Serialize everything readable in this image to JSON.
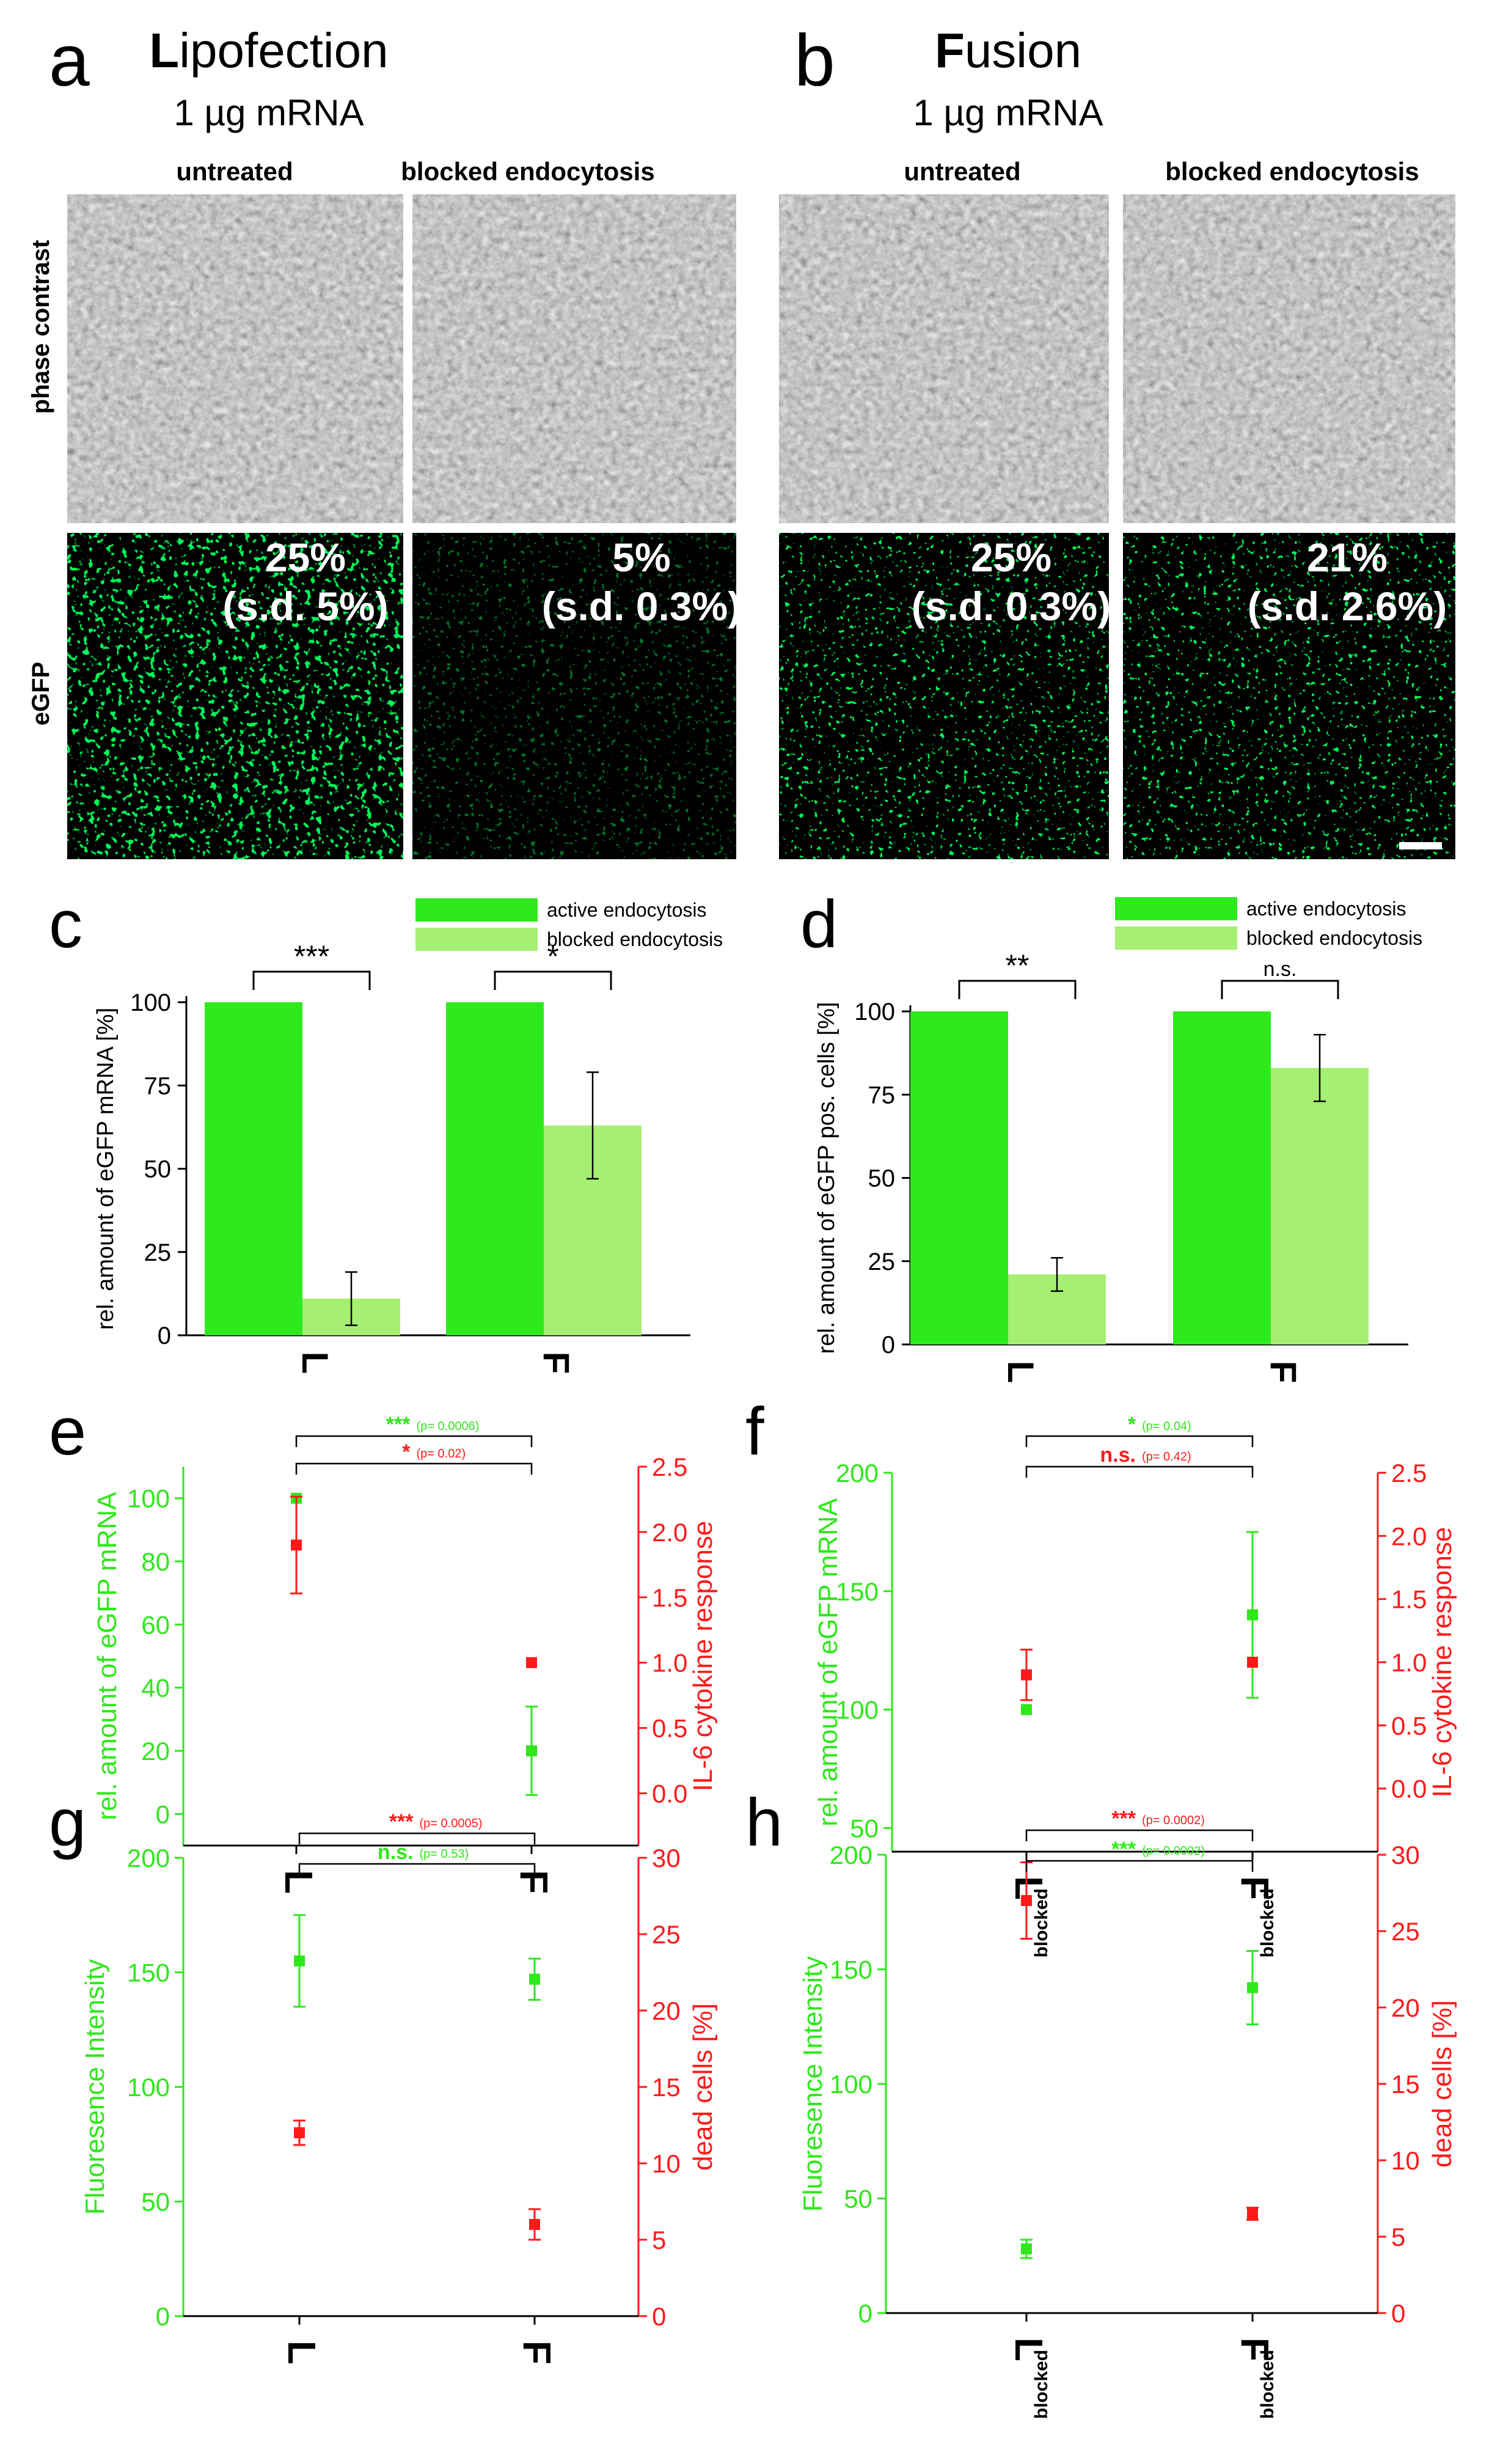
{
  "colors": {
    "active": "#2eea1c",
    "blocked": "#a5ef72",
    "green_axis": "#2ee81a",
    "red_axis": "#ff1a1a",
    "gfp_bg": "#000000",
    "gfp_cells": "#39ff3a",
    "phase_bg": "#a8a8a8"
  },
  "panel_a": {
    "letter": "a",
    "title_initial": "L",
    "title_rest": "ipofection",
    "subtitle": "1 µg mRNA",
    "col_untreated": "untreated",
    "col_blocked": "blocked endocytosis",
    "row_phase": "phase contrast",
    "row_egfp": "eGFP",
    "untreated_pct": "25%",
    "untreated_sd": "(s.d. 5%)",
    "blocked_pct": "5%",
    "blocked_sd": "(s.d. 0.3%)"
  },
  "panel_b": {
    "letter": "b",
    "title_initial": "F",
    "title_rest": "usion",
    "subtitle": "1 µg mRNA",
    "col_untreated": "untreated",
    "col_blocked": "blocked endocytosis",
    "untreated_pct": "25%",
    "untreated_sd": "(s.d. 0.3%)",
    "blocked_pct": "21%",
    "blocked_sd": "(s.d. 2.6%)"
  },
  "chart_data": [
    {
      "panel": "c",
      "type": "bar",
      "ylabel": "rel. amount of eGFP mRNA [%]",
      "categories": [
        "L",
        "F"
      ],
      "ylim": [
        0,
        100
      ],
      "yticks": [
        0,
        25,
        50,
        75,
        100
      ],
      "series": [
        {
          "name": "active endocytosis",
          "values": [
            100,
            100
          ],
          "errors": [
            0,
            0
          ]
        },
        {
          "name": "blocked endocytosis",
          "values": [
            11,
            63
          ],
          "errors": [
            8,
            16
          ]
        }
      ],
      "significance": [
        "***",
        "*"
      ],
      "legend_position": "top"
    },
    {
      "panel": "d",
      "type": "bar",
      "ylabel": "rel. amount of eGFP pos. cells [%]",
      "categories": [
        "L",
        "F"
      ],
      "ylim": [
        0,
        100
      ],
      "yticks": [
        0,
        25,
        50,
        75,
        100
      ],
      "series": [
        {
          "name": "active endocytosis",
          "values": [
            100,
            100
          ],
          "errors": [
            0,
            0
          ]
        },
        {
          "name": "blocked endocytosis",
          "values": [
            21,
            83
          ],
          "errors": [
            5,
            10
          ]
        }
      ],
      "significance": [
        "**",
        "n.s."
      ],
      "legend_position": "top"
    },
    {
      "panel": "e",
      "type": "scatter",
      "categories": [
        "L",
        "F"
      ],
      "sub_labels": [
        "",
        ""
      ],
      "left": {
        "label": "rel. amount of eGFP mRNA",
        "ylim": [
          -10,
          110
        ],
        "ticks": [
          0,
          20,
          40,
          60,
          80,
          100
        ],
        "tick_labels": [
          "0",
          "20",
          "40",
          "60",
          "80",
          "100"
        ],
        "values": [
          100,
          20
        ],
        "errors": [
          0,
          14
        ]
      },
      "right": {
        "label": "IL-6 cytokine response",
        "ylim": [
          -0.4,
          2.5
        ],
        "ticks": [
          0.0,
          0.5,
          1.0,
          1.5,
          2.0,
          2.5
        ],
        "tick_labels": [
          "0.0",
          "0.5",
          "1.0",
          "1.5",
          "2.0",
          "2.5"
        ],
        "values": [
          1.9,
          1.0
        ],
        "errors": [
          0.37,
          0
        ]
      },
      "annotations": [
        {
          "stars": "***",
          "p": "(p= 0.0006)",
          "color": "green"
        },
        {
          "stars": "*",
          "p": "(p= 0.02)",
          "color": "red"
        }
      ]
    },
    {
      "panel": "f",
      "type": "scatter",
      "categories": [
        "L",
        "F"
      ],
      "sub_labels": [
        "blocked",
        "blocked"
      ],
      "left": {
        "label": "rel. amount of eGFP mRNA",
        "ylim": [
          40,
          200
        ],
        "ticks": [
          50,
          100,
          150,
          200
        ],
        "tick_labels": [
          "50",
          "100",
          "150",
          "200"
        ],
        "values": [
          100,
          140
        ],
        "errors": [
          0,
          35
        ]
      },
      "right": {
        "label": "IL-6 cytokine response",
        "ylim": [
          -0.5,
          2.5
        ],
        "ticks": [
          0.0,
          0.5,
          1.0,
          1.5,
          2.0,
          2.5
        ],
        "tick_labels": [
          "0.0",
          "0.5",
          "1.0",
          "1.5",
          "2.0",
          "2.5"
        ],
        "values": [
          0.9,
          1.0
        ],
        "errors": [
          0.2,
          0
        ]
      },
      "annotations": [
        {
          "stars": "*",
          "p": "(p= 0.04)",
          "color": "green"
        },
        {
          "stars": "n.s.",
          "p": "(p= 0.42)",
          "color": "red"
        }
      ]
    },
    {
      "panel": "g",
      "type": "scatter",
      "categories": [
        "L",
        "F"
      ],
      "sub_labels": [
        "",
        ""
      ],
      "left": {
        "label": "Fluoresence Intensity",
        "ylim": [
          0,
          200
        ],
        "ticks": [
          0,
          50,
          100,
          150,
          200
        ],
        "tick_labels": [
          "0",
          "50",
          "100",
          "150",
          "200"
        ],
        "values": [
          155,
          147
        ],
        "errors": [
          20,
          9
        ]
      },
      "right": {
        "label": "dead cells [%]",
        "ylim": [
          0,
          30
        ],
        "ticks": [
          0,
          5,
          10,
          15,
          20,
          25,
          30
        ],
        "tick_labels": [
          "0",
          "5",
          "10",
          "15",
          "20",
          "25",
          "30"
        ],
        "values": [
          12,
          6
        ],
        "errors": [
          0.8,
          1.0
        ]
      },
      "annotations": [
        {
          "stars": "***",
          "p": "(p= 0.0005)",
          "color": "red"
        },
        {
          "stars": "n.s.",
          "p": "(p= 0.53)",
          "color": "green"
        }
      ]
    },
    {
      "panel": "h",
      "type": "scatter",
      "categories": [
        "L",
        "F"
      ],
      "sub_labels": [
        "blocked",
        "blocked"
      ],
      "left": {
        "label": "Fluoresence Intensity",
        "ylim": [
          0,
          200
        ],
        "ticks": [
          0,
          50,
          100,
          150,
          200
        ],
        "tick_labels": [
          "0",
          "50",
          "100",
          "150",
          "200"
        ],
        "values": [
          28,
          142
        ],
        "errors": [
          4,
          16
        ]
      },
      "right": {
        "label": "dead cells [%]",
        "ylim": [
          0,
          30
        ],
        "ticks": [
          0,
          5,
          10,
          15,
          20,
          25,
          30
        ],
        "tick_labels": [
          "0",
          "5",
          "10",
          "15",
          "20",
          "25",
          "30"
        ],
        "values": [
          27,
          6.5
        ],
        "errors": [
          2.5,
          0.4
        ]
      },
      "annotations": [
        {
          "stars": "***",
          "p": "(p= 0.0002)",
          "color": "red"
        },
        {
          "stars": "***",
          "p": "(p= 0.0002)",
          "color": "green"
        }
      ]
    }
  ]
}
